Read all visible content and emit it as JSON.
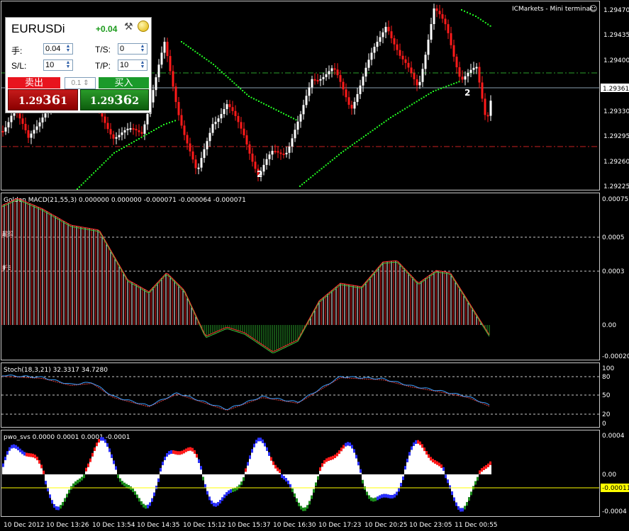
{
  "window": {
    "title": "ICMarkets - Mini terminal",
    "smile": "☺"
  },
  "one_click": {
    "symbol": "EURUSDi",
    "change": "+0.04",
    "lot_label": "手:",
    "lot_value": "0.04",
    "sl_label": "S/L:",
    "sl_value": "10",
    "ts_label": "T/S:",
    "ts_value": "0",
    "tp_label": "T/P:",
    "tp_value": "10",
    "sell_label": "卖出",
    "buy_label": "买入",
    "volume": "0.1",
    "sell_price_small": "1.29",
    "sell_price_big": "36",
    "sell_price_tail": "1",
    "buy_price_small": "1.29",
    "buy_price_big": "36",
    "buy_price_tail": "2"
  },
  "main_axis": {
    "labels": [
      "1.29470",
      "1.29435",
      "1.29400",
      "1.29365",
      "1.29330",
      "1.29295",
      "1.29260",
      "1.29225"
    ],
    "current_price": "1.29361"
  },
  "pivot_labels": [
    "2",
    "2"
  ],
  "macd": {
    "title": "Golden MACD(21,55,3) 0.000000 0.000000 -0.000071 -0.000064 -0.000071",
    "axis_labels": [
      "0.00075",
      "0.0005",
      "0.0003",
      "0.00",
      "-0.00020"
    ],
    "level_label_upper": "超买",
    "level_label_lower": "折3"
  },
  "stoch": {
    "title": "Stoch(18,3,21) 32.3317 34.7280",
    "axis_labels": [
      "100",
      "80",
      "50",
      "20",
      "0"
    ]
  },
  "pwo": {
    "title": "pwo_svs 0.0000 0.0001 0.0001 -0.0001",
    "axis_labels": [
      "0.0004",
      "0.00",
      "-0.0004"
    ],
    "current_value": "-0.00011"
  },
  "time_axis": [
    "10 Dec 2012",
    "10 Dec 13:26",
    "10 Dec 13:54",
    "10 Dec 14:35",
    "10 Dec 15:12",
    "10 Dec 15:37",
    "10 Dec 16:30",
    "10 Dec 17:23",
    "10 Dec 20:25",
    "10 Dec 23:05",
    "11 Dec 00:55"
  ],
  "colors": {
    "bull": "#ffffff",
    "bear": "#ff1a1a",
    "hline_red": "#c82020",
    "hline_green": "#2aa02a",
    "dots": "#22ff22",
    "grid": "#c8c8c8",
    "text": "#ffffff",
    "stoch_main": "#3aa0ff",
    "stoch_signal": "#e04040",
    "pwo_green": "#1c8c1c",
    "pwo_blue": "#2a30ff",
    "pwo_yellow": "#ffff00"
  }
}
